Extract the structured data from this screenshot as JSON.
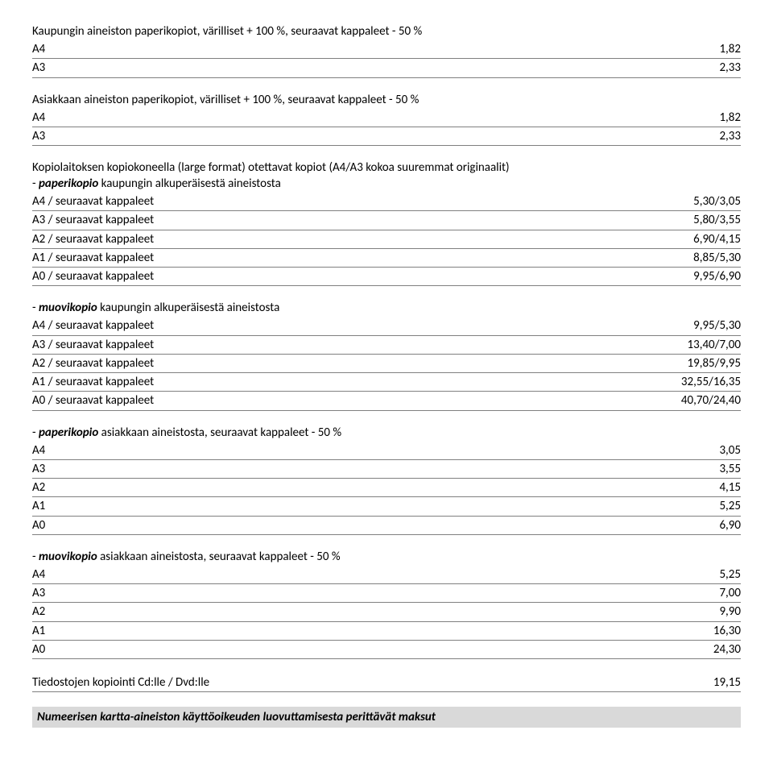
{
  "sections": [
    {
      "title": "Kaupungin  aineiston paperikopiot, värilliset + 100 %, seuraavat kappaleet - 50 %",
      "rows": [
        {
          "label": "A4",
          "value": "1,82"
        },
        {
          "label": "A3",
          "value": "2,33"
        }
      ]
    },
    {
      "title": "Asiakkaan aineiston paperikopiot, värilliset + 100 %, seuraavat kappaleet - 50 %",
      "rows": [
        {
          "label": "A4",
          "value": "1,82"
        },
        {
          "label": "A3",
          "value": "2,33"
        }
      ]
    },
    {
      "title": "Kopiolaitoksen kopiokoneella  (large format) otettavat kopiot (A4/A3 kokoa suuremmat originaalit)",
      "subtitle_prefix": "- ",
      "subtitle_em": "paperikopio",
      "subtitle_suffix": "  kaupungin alkuperäisestä aineistosta",
      "rows": [
        {
          "label": "A4 / seuraavat kappaleet",
          "value": "5,30/3,05"
        },
        {
          "label": "A3 / seuraavat kappaleet",
          "value": "5,80/3,55"
        },
        {
          "label": "A2 / seuraavat kappaleet",
          "value": "6,90/4,15"
        },
        {
          "label": "A1 / seuraavat kappaleet",
          "value": "8,85/5,30"
        },
        {
          "label": "A0 / seuraavat kappaleet",
          "value": "9,95/6,90"
        }
      ]
    },
    {
      "subtitle_prefix": "- ",
      "subtitle_em": "muovikopio",
      "subtitle_suffix": "  kaupungin alkuperäisestä aineistosta",
      "rows": [
        {
          "label": "A4 / seuraavat kappaleet",
          "value": "9,95/5,30"
        },
        {
          "label": "A3 / seuraavat kappaleet",
          "value": "13,40/7,00"
        },
        {
          "label": "A2 / seuraavat kappaleet",
          "value": "19,85/9,95"
        },
        {
          "label": "A1 / seuraavat kappaleet",
          "value": "32,55/16,35"
        },
        {
          "label": "A0 / seuraavat kappaleet",
          "value": "40,70/24,40"
        }
      ]
    },
    {
      "subtitle_prefix": "- ",
      "subtitle_em": "paperikopio",
      "subtitle_suffix": "  asiakkaan aineistosta, seuraavat kappaleet - 50 %",
      "rows": [
        {
          "label": "A4",
          "value": "3,05"
        },
        {
          "label": "A3",
          "value": "3,55"
        },
        {
          "label": "A2",
          "value": "4,15"
        },
        {
          "label": "A1",
          "value": "5,25"
        },
        {
          "label": "A0",
          "value": "6,90"
        }
      ]
    },
    {
      "subtitle_prefix": "- ",
      "subtitle_em": "muovikopio",
      "subtitle_suffix": "  asiakkaan aineistosta, seuraavat kappaleet - 50 %",
      "rows": [
        {
          "label": "A4",
          "value": "5,25"
        },
        {
          "label": "A3",
          "value": "7,00"
        },
        {
          "label": "A2",
          "value": "9,90"
        },
        {
          "label": "A1",
          "value": "16,30"
        },
        {
          "label": "A0",
          "value": "24,30"
        }
      ]
    },
    {
      "rows": [
        {
          "label": "Tiedostojen kopiointi Cd:lle / Dvd:lle",
          "value": "19,15"
        }
      ]
    }
  ],
  "footer": "Numeerisen kartta-aineiston käyttöoikeuden luovuttamisesta perittävät maksut",
  "style": {
    "background": "#ffffff",
    "text_color": "#000000",
    "row_border_color": "#808080",
    "footer_bg": "#d9d9d9",
    "font_family": "Calibri, Arial, sans-serif",
    "font_size_pt": 11
  }
}
